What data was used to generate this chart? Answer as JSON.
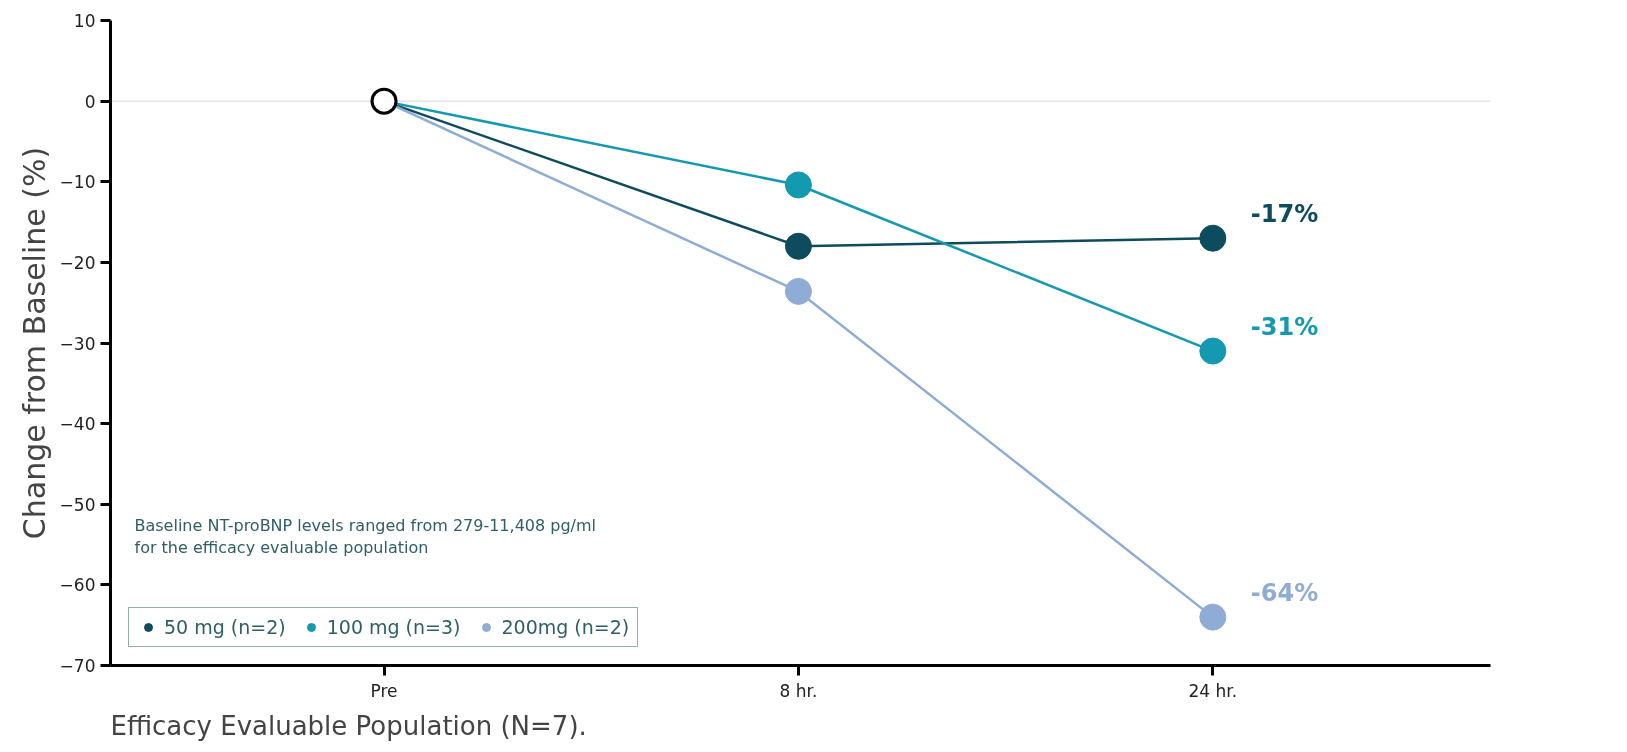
{
  "chart_data": {
    "type": "line",
    "ylabel": "Change from Baseline (%)",
    "categories": [
      "Pre",
      "8 hr.",
      "24 hr."
    ],
    "series": [
      {
        "name": "50 mg (n=2)",
        "color": "#0d4c5e",
        "values": [
          0,
          -18,
          -17
        ],
        "value_labels": [
          null,
          null,
          "-17%"
        ]
      },
      {
        "name": "100 mg (n=3)",
        "color": "#1399b0",
        "values": [
          0,
          -10.4,
          -31
        ],
        "value_labels": [
          null,
          null,
          "-31%"
        ]
      },
      {
        "name": "200mg (n=2)",
        "color": "#8facd4",
        "values": [
          0,
          -23.6,
          -64
        ],
        "value_labels": [
          null,
          null,
          "-64%"
        ]
      }
    ],
    "ylim": [
      -70,
      10
    ],
    "yticks": [
      10,
      0,
      -10,
      -20,
      -30,
      -40,
      -50,
      -60,
      -70
    ],
    "ref_lines": [
      {
        "axis": "y",
        "value": 0,
        "color": "#e3e3e3"
      }
    ],
    "annotations": [
      "Baseline NT-proBNP levels ranged from 279-11,408 pg/ml\nfor the efficacy evaluable population",
      "Efficacy Evaluable Population (N=7)."
    ],
    "legend": "bottom left",
    "marker": "circle",
    "grid": false
  }
}
